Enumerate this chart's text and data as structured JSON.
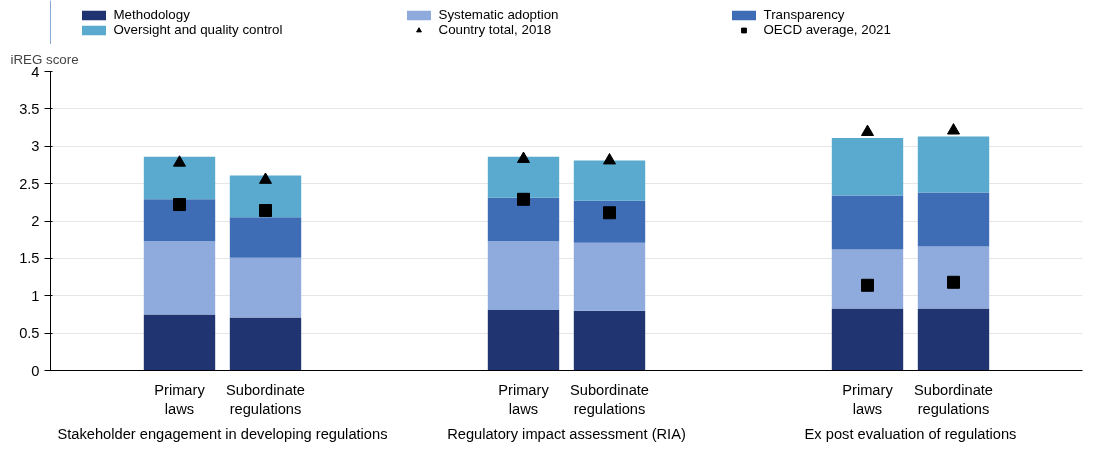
{
  "chart_data": {
    "type": "bar",
    "stacked": true,
    "ylabel": "iREG score",
    "categories": [
      null,
      "Primary laws",
      "Subordinate regulations",
      null,
      null,
      "Primary laws",
      "Subordinate regulations",
      null,
      null,
      "Primary laws",
      "Subordinate regulations",
      null
    ],
    "series": [
      {
        "name": "Methodology",
        "color": "#1f3470",
        "values": [
          null,
          0.75,
          0.71,
          null,
          null,
          0.81,
          0.8,
          null,
          null,
          0.83,
          0.83,
          null
        ]
      },
      {
        "name": "Systematic adoption",
        "color": "#8faadc",
        "values": [
          null,
          0.98,
          0.8,
          null,
          null,
          0.92,
          0.91,
          null,
          null,
          0.79,
          0.83,
          null
        ]
      },
      {
        "name": "Transparency",
        "color": "#3f6db5",
        "values": [
          null,
          0.56,
          0.54,
          null,
          null,
          0.58,
          0.56,
          null,
          null,
          0.72,
          0.72,
          null
        ]
      },
      {
        "name": "Oversight and quality control",
        "color": "#5aa9cf",
        "values": [
          null,
          0.57,
          0.56,
          null,
          null,
          0.55,
          0.54,
          null,
          null,
          0.77,
          0.75,
          null
        ]
      },
      {
        "name": "Country total, 2018",
        "type": "scatter",
        "marker": "triangle",
        "color": "#000000",
        "values": [
          null,
          2.78,
          2.55,
          null,
          null,
          2.83,
          2.81,
          null,
          null,
          3.19,
          3.21,
          null
        ]
      },
      {
        "name": "OECD average, 2021",
        "type": "scatter",
        "marker": "square",
        "color": "#000000",
        "values": [
          null,
          2.22,
          2.14,
          null,
          null,
          2.29,
          2.11,
          null,
          null,
          1.14,
          1.18,
          null
        ]
      }
    ],
    "annotations": [
      "Stakeholder engagement in developing regulations",
      "Regulatory impact assessment (RIA)",
      "Ex post evaluation of regulations"
    ],
    "ylim": [
      0,
      4
    ],
    "yticks": [
      0,
      0.5,
      1,
      1.5,
      2,
      2.5,
      3,
      3.5,
      4
    ],
    "grid": "y",
    "legend": "top"
  }
}
